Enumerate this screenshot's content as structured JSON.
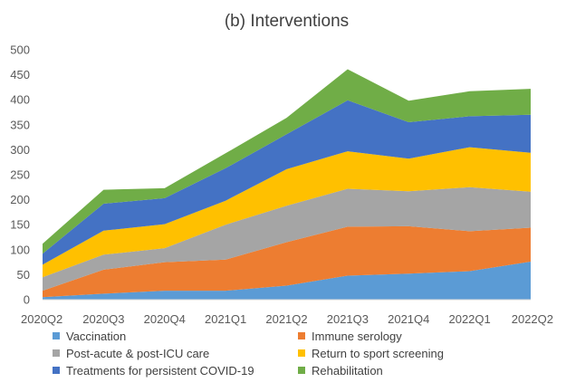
{
  "chart_data": {
    "type": "area",
    "stacked": true,
    "title": "(b) Interventions",
    "xlabel": "",
    "ylabel": "",
    "categories": [
      "2020Q2",
      "2020Q3",
      "2020Q4",
      "2021Q1",
      "2021Q2",
      "2021Q3",
      "2021Q4",
      "2022Q1",
      "2022Q2"
    ],
    "ylim": [
      0,
      500
    ],
    "yticks": [
      0,
      50,
      100,
      150,
      200,
      250,
      300,
      350,
      400,
      450,
      500
    ],
    "grid": false,
    "legend_position": "bottom",
    "series": [
      {
        "name": "Vaccination",
        "color": "#5B9BD5",
        "values": [
          5,
          12,
          18,
          18,
          28,
          48,
          52,
          57,
          76
        ]
      },
      {
        "name": "Immune serology",
        "color": "#ED7D31",
        "values": [
          13,
          48,
          57,
          62,
          87,
          98,
          95,
          80,
          68
        ]
      },
      {
        "name": "Post-acute & post-ICU care",
        "color": "#A5A5A5",
        "values": [
          27,
          30,
          28,
          70,
          73,
          76,
          70,
          88,
          72
        ]
      },
      {
        "name": "Return to sport screening",
        "color": "#FFC000",
        "values": [
          25,
          48,
          48,
          48,
          73,
          75,
          65,
          80,
          78
        ]
      },
      {
        "name": "Treatments for persistent COVID-19",
        "color": "#4472C4",
        "values": [
          22,
          54,
          52,
          65,
          70,
          102,
          73,
          62,
          76
        ]
      },
      {
        "name": "Rehabilitation",
        "color": "#70AD47",
        "values": [
          20,
          28,
          20,
          30,
          33,
          62,
          43,
          50,
          52
        ]
      }
    ]
  }
}
